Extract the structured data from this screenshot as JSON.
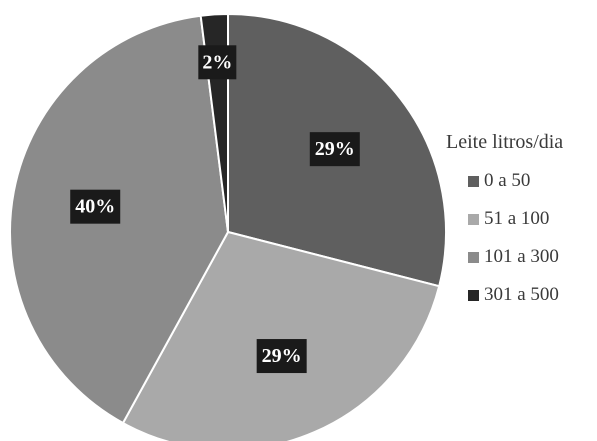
{
  "chart_data": {
    "type": "pie",
    "legend_title": "Leite litros/dia",
    "legend_position": "right",
    "slices": [
      {
        "label": "0 a 50",
        "value": 29,
        "display": "29%",
        "color": "#5f5f5f"
      },
      {
        "label": "51 a 100",
        "value": 29,
        "display": "29%",
        "color": "#a9a9a9"
      },
      {
        "label": "101 a 300",
        "value": 40,
        "display": "40%",
        "color": "#8b8b8b"
      },
      {
        "label": "301 a 500",
        "value": 2,
        "display": "2%",
        "color": "#262626"
      }
    ],
    "start_angle_deg": 0,
    "direction": "clockwise",
    "label_box_color": "#1a1a1a",
    "label_text_color": "#ffffff"
  }
}
